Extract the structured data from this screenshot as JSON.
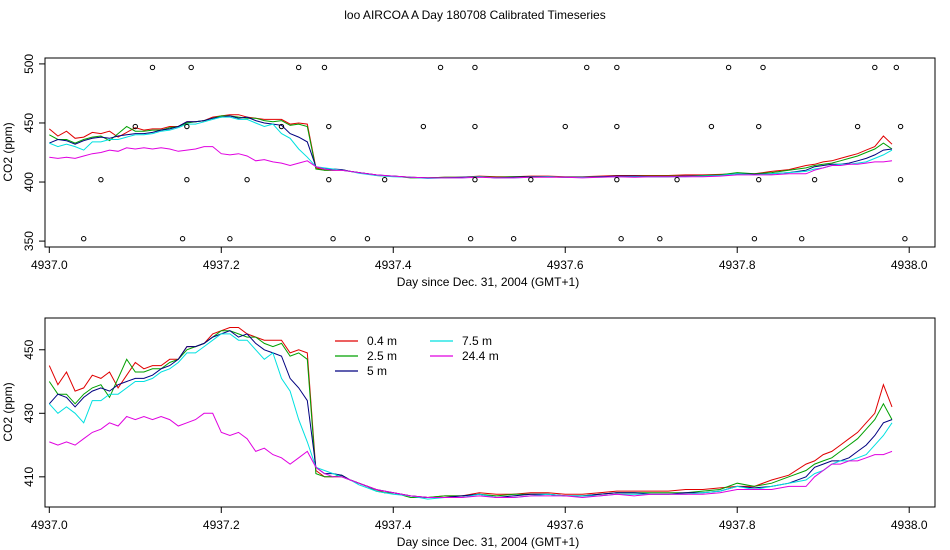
{
  "title": "loo AIRCOA A  Day 180708  Calibrated Timeseries",
  "chart_data": [
    {
      "type": "line",
      "xlabel": "Day since Dec. 31, 2004 (GMT+1)",
      "ylabel": "CO2 (ppm)",
      "xlim": [
        4936.995,
        4938.03
      ],
      "ylim": [
        345,
        505
      ],
      "xticks": [
        "4937.0",
        "4937.2",
        "4937.4",
        "4937.6",
        "4937.8",
        "4938.0"
      ],
      "xtick_values": [
        4937.0,
        4937.2,
        4937.4,
        4937.6,
        4937.8,
        4938.0
      ],
      "yticks": [
        "350",
        "400",
        "450",
        "500"
      ],
      "ytick_values": [
        350,
        400,
        450,
        500
      ],
      "grid": false,
      "points": {
        "style": "open-circle",
        "xy": [
          [
            4937.04,
            352
          ],
          [
            4937.06,
            402
          ],
          [
            4937.1,
            447
          ],
          [
            4937.12,
            497
          ],
          [
            4937.155,
            352
          ],
          [
            4937.16,
            402
          ],
          [
            4937.16,
            447
          ],
          [
            4937.165,
            497
          ],
          [
            4937.21,
            352
          ],
          [
            4937.23,
            402
          ],
          [
            4937.27,
            447
          ],
          [
            4937.29,
            497
          ],
          [
            4937.32,
            497
          ],
          [
            4937.325,
            447
          ],
          [
            4937.325,
            402
          ],
          [
            4937.33,
            352
          ],
          [
            4937.37,
            352
          ],
          [
            4937.39,
            402
          ],
          [
            4937.435,
            447
          ],
          [
            4937.455,
            497
          ],
          [
            4937.49,
            352
          ],
          [
            4937.495,
            402
          ],
          [
            4937.495,
            447
          ],
          [
            4937.495,
            497
          ],
          [
            4937.54,
            352
          ],
          [
            4937.56,
            402
          ],
          [
            4937.6,
            447
          ],
          [
            4937.625,
            497
          ],
          [
            4937.66,
            497
          ],
          [
            4937.66,
            447
          ],
          [
            4937.66,
            402
          ],
          [
            4937.665,
            352
          ],
          [
            4937.71,
            352
          ],
          [
            4937.73,
            402
          ],
          [
            4937.77,
            447
          ],
          [
            4937.79,
            497
          ],
          [
            4937.82,
            352
          ],
          [
            4937.825,
            402
          ],
          [
            4937.825,
            447
          ],
          [
            4937.83,
            497
          ],
          [
            4937.875,
            352
          ],
          [
            4937.89,
            402
          ],
          [
            4937.94,
            447
          ],
          [
            4937.96,
            497
          ],
          [
            4937.985,
            497
          ],
          [
            4937.99,
            447
          ],
          [
            4937.99,
            402
          ],
          [
            4937.995,
            352
          ]
        ]
      },
      "legend": null
    },
    {
      "type": "line",
      "xlabel": "Day since Dec. 31, 2004 (GMT+1)",
      "ylabel": "CO2 (ppm)",
      "xlim": [
        4936.995,
        4938.03
      ],
      "ylim": [
        400.5,
        460
      ],
      "xticks": [
        "4937.0",
        "4937.2",
        "4937.4",
        "4937.6",
        "4937.8",
        "4938.0"
      ],
      "xtick_values": [
        4937.0,
        4937.2,
        4937.4,
        4937.6,
        4937.8,
        4938.0
      ],
      "yticks": [
        "410",
        "430",
        "450"
      ],
      "ytick_values": [
        410,
        430,
        450
      ],
      "grid": false,
      "legend": {
        "placement": "top-center",
        "entries": [
          "0.4 m",
          "2.5 m",
          "5 m",
          "7.5 m",
          "24.4 m"
        ]
      }
    }
  ],
  "series": [
    {
      "name": "0.4 m",
      "color": "#e00000",
      "x": [
        4937.0,
        4937.01,
        4937.02,
        4937.03,
        4937.04,
        4937.05,
        4937.06,
        4937.07,
        4937.08,
        4937.09,
        4937.1,
        4937.11,
        4937.12,
        4937.13,
        4937.14,
        4937.15,
        4937.16,
        4937.17,
        4937.18,
        4937.19,
        4937.2,
        4937.21,
        4937.22,
        4937.23,
        4937.24,
        4937.25,
        4937.26,
        4937.27,
        4937.28,
        4937.29,
        4937.3,
        4937.31,
        4937.32,
        4937.33,
        4937.34,
        4937.35,
        4937.36,
        4937.37,
        4937.38,
        4937.39,
        4937.4,
        4937.42,
        4937.44,
        4937.46,
        4937.48,
        4937.5,
        4937.52,
        4937.54,
        4937.56,
        4937.58,
        4937.6,
        4937.62,
        4937.64,
        4937.66,
        4937.68,
        4937.7,
        4937.72,
        4937.74,
        4937.76,
        4937.78,
        4937.8,
        4937.82,
        4937.84,
        4937.86,
        4937.88,
        4937.89,
        4937.9,
        4937.91,
        4937.92,
        4937.93,
        4937.94,
        4937.95,
        4937.96,
        4937.97,
        4937.98
      ],
      "values": [
        445,
        439,
        443,
        437,
        438,
        442,
        441,
        443,
        438,
        442,
        446,
        444,
        445,
        445,
        447,
        447,
        451,
        451,
        452,
        455,
        456,
        457,
        457,
        455,
        454,
        453,
        453,
        453,
        449,
        450,
        449,
        412,
        410,
        410,
        410,
        409,
        408,
        407,
        406,
        405,
        405,
        404,
        403.5,
        404,
        404,
        405,
        404.5,
        404.5,
        405,
        405,
        404.5,
        404.5,
        405,
        405.5,
        405.5,
        405.5,
        405.5,
        406,
        406,
        406.5,
        407,
        407,
        409,
        410.5,
        414,
        415,
        417,
        418,
        420,
        422,
        424,
        427,
        430,
        439,
        432
      ]
    },
    {
      "name": "2.5 m",
      "color": "#00a000",
      "x": [
        4937.0,
        4937.01,
        4937.02,
        4937.03,
        4937.04,
        4937.05,
        4937.06,
        4937.07,
        4937.08,
        4937.09,
        4937.1,
        4937.11,
        4937.12,
        4937.13,
        4937.14,
        4937.15,
        4937.16,
        4937.17,
        4937.18,
        4937.19,
        4937.2,
        4937.21,
        4937.22,
        4937.23,
        4937.24,
        4937.25,
        4937.26,
        4937.27,
        4937.28,
        4937.29,
        4937.3,
        4937.31,
        4937.32,
        4937.33,
        4937.34,
        4937.35,
        4937.36,
        4937.37,
        4937.38,
        4937.39,
        4937.4,
        4937.42,
        4937.44,
        4937.46,
        4937.48,
        4937.5,
        4937.52,
        4937.54,
        4937.56,
        4937.58,
        4937.6,
        4937.62,
        4937.64,
        4937.66,
        4937.68,
        4937.7,
        4937.72,
        4937.74,
        4937.76,
        4937.78,
        4937.8,
        4937.82,
        4937.84,
        4937.86,
        4937.88,
        4937.89,
        4937.9,
        4937.91,
        4937.92,
        4937.93,
        4937.94,
        4937.95,
        4937.96,
        4937.97,
        4937.98
      ],
      "values": [
        440,
        436,
        436,
        433,
        436,
        438,
        439,
        435,
        441,
        447,
        443,
        443,
        444,
        444,
        446,
        447,
        450,
        451,
        452,
        454,
        456,
        456,
        455,
        454,
        454,
        452,
        451,
        452,
        448,
        449,
        447,
        411,
        410,
        410,
        410.5,
        409,
        408,
        407,
        405.5,
        405,
        405,
        403.5,
        403.5,
        404,
        404,
        404.5,
        404,
        404.5,
        404.5,
        404.5,
        404,
        404,
        404.5,
        405,
        405,
        405,
        405,
        405,
        405.5,
        406,
        408,
        407,
        408,
        410,
        412,
        414,
        415,
        416,
        418,
        420,
        422,
        425,
        428,
        433,
        428
      ]
    },
    {
      "name": "5 m",
      "color": "#000080",
      "x": [
        4937.0,
        4937.01,
        4937.02,
        4937.03,
        4937.04,
        4937.05,
        4937.06,
        4937.07,
        4937.08,
        4937.09,
        4937.1,
        4937.11,
        4937.12,
        4937.13,
        4937.14,
        4937.15,
        4937.16,
        4937.17,
        4937.18,
        4937.19,
        4937.2,
        4937.21,
        4937.22,
        4937.23,
        4937.24,
        4937.25,
        4937.26,
        4937.27,
        4937.28,
        4937.29,
        4937.3,
        4937.31,
        4937.32,
        4937.33,
        4937.34,
        4937.35,
        4937.36,
        4937.37,
        4937.38,
        4937.39,
        4937.4,
        4937.42,
        4937.44,
        4937.46,
        4937.48,
        4937.5,
        4937.52,
        4937.54,
        4937.56,
        4937.58,
        4937.6,
        4937.62,
        4937.64,
        4937.66,
        4937.68,
        4937.7,
        4937.72,
        4937.74,
        4937.76,
        4937.78,
        4937.8,
        4937.82,
        4937.84,
        4937.86,
        4937.88,
        4937.89,
        4937.9,
        4937.91,
        4937.92,
        4937.93,
        4937.94,
        4937.95,
        4937.96,
        4937.97,
        4937.98
      ],
      "values": [
        433,
        436,
        435,
        432,
        435,
        437,
        438,
        437,
        439,
        440,
        441,
        441,
        442,
        444,
        445,
        447,
        451,
        451,
        452,
        454,
        455,
        456,
        454,
        455,
        452,
        450,
        449,
        448,
        441,
        438,
        434,
        413,
        411,
        411,
        410.5,
        409,
        408,
        407,
        406,
        405.5,
        405,
        404,
        403.5,
        403.5,
        404,
        404.5,
        403.5,
        404,
        404.5,
        404.5,
        404,
        404,
        404.5,
        405,
        405,
        404.5,
        404.5,
        405,
        405,
        405.5,
        407,
        406.5,
        407,
        408,
        410,
        413,
        414,
        415,
        415,
        416,
        418,
        420,
        423,
        427,
        428
      ]
    },
    {
      "name": "7.5 m",
      "color": "#00e0e0",
      "x": [
        4937.0,
        4937.01,
        4937.02,
        4937.03,
        4937.04,
        4937.05,
        4937.06,
        4937.07,
        4937.08,
        4937.09,
        4937.1,
        4937.11,
        4937.12,
        4937.13,
        4937.14,
        4937.15,
        4937.16,
        4937.17,
        4937.18,
        4937.19,
        4937.2,
        4937.21,
        4937.22,
        4937.23,
        4937.24,
        4937.25,
        4937.26,
        4937.27,
        4937.28,
        4937.29,
        4937.3,
        4937.31,
        4937.32,
        4937.33,
        4937.34,
        4937.35,
        4937.36,
        4937.37,
        4937.38,
        4937.39,
        4937.4,
        4937.42,
        4937.44,
        4937.46,
        4937.48,
        4937.5,
        4937.52,
        4937.54,
        4937.56,
        4937.58,
        4937.6,
        4937.62,
        4937.64,
        4937.66,
        4937.68,
        4937.7,
        4937.72,
        4937.74,
        4937.76,
        4937.78,
        4937.8,
        4937.82,
        4937.84,
        4937.86,
        4937.88,
        4937.89,
        4937.9,
        4937.91,
        4937.92,
        4937.93,
        4937.94,
        4937.95,
        4937.96,
        4937.97,
        4937.98
      ],
      "values": [
        433,
        430,
        432,
        430,
        427,
        434,
        434,
        436,
        436,
        438,
        440,
        440,
        441,
        443,
        444,
        446,
        449,
        449,
        451,
        453,
        455,
        455,
        453,
        453,
        450,
        447,
        449,
        441,
        437,
        428,
        421,
        413,
        412,
        411,
        410,
        409,
        407.5,
        406.5,
        405.5,
        405,
        404.5,
        404,
        403,
        403.5,
        403.5,
        404.5,
        403.5,
        403.5,
        404,
        404.5,
        404,
        404,
        404,
        404.5,
        404.5,
        404.5,
        404.5,
        404.5,
        405,
        405.5,
        407,
        406,
        407,
        408,
        409,
        411,
        412,
        414,
        415,
        415,
        416,
        417,
        420,
        423,
        427
      ]
    },
    {
      "name": "24.4 m",
      "color": "#e000e0",
      "x": [
        4937.0,
        4937.01,
        4937.02,
        4937.03,
        4937.04,
        4937.05,
        4937.06,
        4937.07,
        4937.08,
        4937.09,
        4937.1,
        4937.11,
        4937.12,
        4937.13,
        4937.14,
        4937.15,
        4937.16,
        4937.17,
        4937.18,
        4937.19,
        4937.2,
        4937.21,
        4937.22,
        4937.23,
        4937.24,
        4937.25,
        4937.26,
        4937.27,
        4937.28,
        4937.29,
        4937.3,
        4937.31,
        4937.32,
        4937.33,
        4937.34,
        4937.35,
        4937.36,
        4937.37,
        4937.38,
        4937.39,
        4937.4,
        4937.42,
        4937.44,
        4937.46,
        4937.48,
        4937.5,
        4937.52,
        4937.54,
        4937.56,
        4937.58,
        4937.6,
        4937.62,
        4937.64,
        4937.66,
        4937.68,
        4937.7,
        4937.72,
        4937.74,
        4937.76,
        4937.78,
        4937.8,
        4937.82,
        4937.84,
        4937.86,
        4937.88,
        4937.89,
        4937.9,
        4937.91,
        4937.92,
        4937.93,
        4937.94,
        4937.95,
        4937.96,
        4937.97,
        4937.98
      ],
      "values": [
        421,
        420,
        421,
        420,
        422,
        424,
        425,
        427,
        426,
        429,
        428,
        429,
        428,
        429,
        428,
        426,
        427,
        428,
        430,
        430,
        424,
        423,
        424,
        422,
        418,
        419,
        417,
        416,
        414,
        416,
        418,
        413,
        411,
        410,
        410,
        409,
        408,
        407,
        406,
        405.5,
        405,
        404,
        403.5,
        403.5,
        403.5,
        404,
        403.5,
        403.5,
        404,
        404,
        404,
        403.5,
        404,
        404.5,
        404,
        404.5,
        404.5,
        404.5,
        404.5,
        405,
        406,
        406,
        406,
        407,
        407,
        410,
        412,
        414,
        414,
        415,
        415,
        416,
        417,
        417,
        418
      ]
    }
  ]
}
